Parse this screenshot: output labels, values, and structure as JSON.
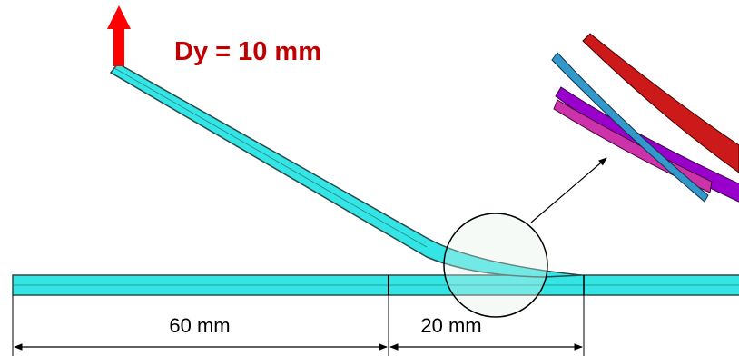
{
  "labels": {
    "load": "Dy = 10 mm",
    "left_length": "60 mm",
    "right_length": "20 mm"
  }
}
